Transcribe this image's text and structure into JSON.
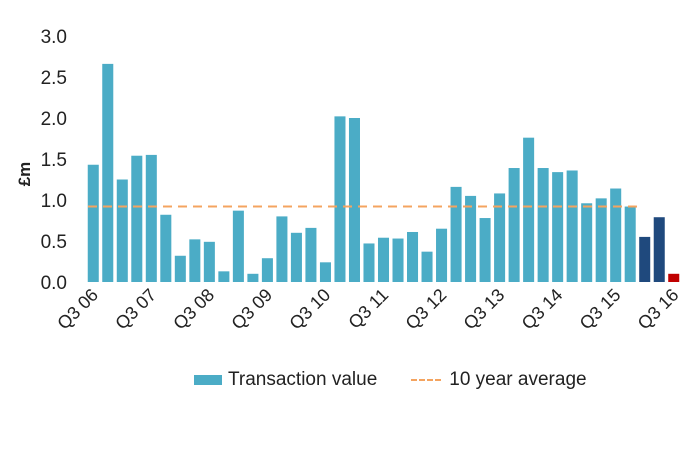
{
  "colors": {
    "bar": "#4bacc6",
    "highlight": "#1f497d",
    "latest": "#c00000",
    "average": "#f4a460",
    "axis_text": "#222222"
  },
  "chart_data": {
    "type": "bar",
    "title": "",
    "xlabel": "",
    "ylabel": "£m",
    "ylim": [
      0,
      3.0
    ],
    "yticks": [
      "0.0",
      "0.5",
      "1.0",
      "1.5",
      "2.0",
      "2.5",
      "3.0"
    ],
    "ytick_values": [
      0,
      0.5,
      1.0,
      1.5,
      2.0,
      2.5,
      3.0
    ],
    "tick_labels": [
      "Q3 06",
      "Q3 07",
      "Q3 08",
      "Q3 09",
      "Q3 10",
      "Q3 11",
      "Q3 12",
      "Q3 13",
      "Q3 14",
      "Q3 15",
      "Q3 16"
    ],
    "tick_every": 4,
    "values": [
      1.43,
      2.66,
      1.25,
      1.54,
      1.55,
      0.82,
      0.32,
      0.52,
      0.49,
      0.13,
      0.87,
      0.1,
      0.29,
      0.8,
      0.6,
      0.66,
      0.24,
      2.02,
      2.0,
      0.47,
      0.54,
      0.53,
      0.61,
      0.37,
      0.65,
      1.16,
      1.05,
      0.78,
      1.08,
      1.39,
      1.76,
      1.39,
      1.34,
      1.36,
      0.96,
      1.02,
      1.14,
      0.92,
      0.55,
      0.79,
      0.1
    ],
    "bar_colors": [
      "bar",
      "bar",
      "bar",
      "bar",
      "bar",
      "bar",
      "bar",
      "bar",
      "bar",
      "bar",
      "bar",
      "bar",
      "bar",
      "bar",
      "bar",
      "bar",
      "bar",
      "bar",
      "bar",
      "bar",
      "bar",
      "bar",
      "bar",
      "bar",
      "bar",
      "bar",
      "bar",
      "bar",
      "bar",
      "bar",
      "bar",
      "bar",
      "bar",
      "bar",
      "bar",
      "bar",
      "bar",
      "bar",
      "highlight",
      "highlight",
      "latest"
    ],
    "average": 0.92,
    "grid": false,
    "legend_position": "bottom",
    "legend": {
      "bar_label": "Transaction value",
      "average_label": "10 year average"
    }
  }
}
